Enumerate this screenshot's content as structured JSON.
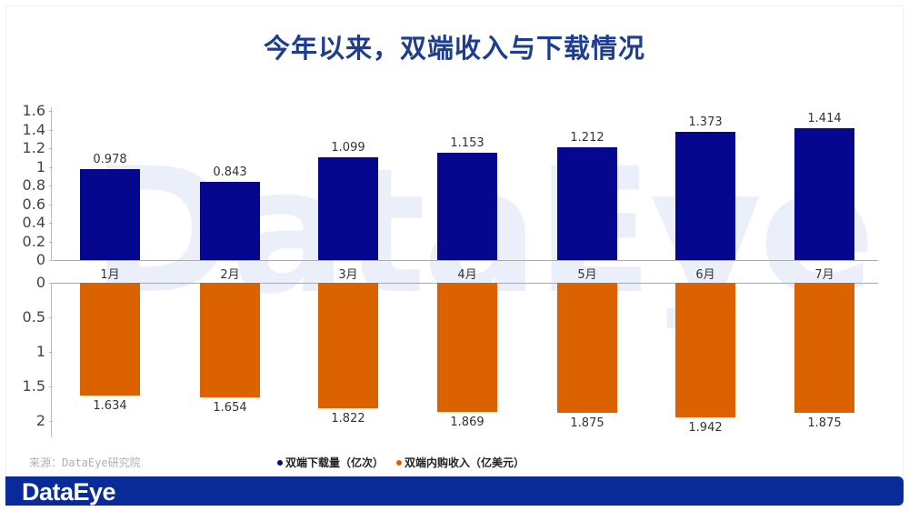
{
  "title": "今年以来，双端收入与下载情况",
  "source": "来源：DataEye研究院",
  "logo": "DataEye",
  "watermark": "DataEye",
  "legend": [
    {
      "label": "双端下载量（亿次）",
      "color": "#06078f"
    },
    {
      "label": "双端内购收入（亿美元）",
      "color": "#dc6200"
    }
  ],
  "chart_data": {
    "type": "bar",
    "title": "今年以来，双端收入与下载情况",
    "categories": [
      "1月",
      "2月",
      "3月",
      "4月",
      "5月",
      "6月",
      "7月"
    ],
    "series": [
      {
        "name": "双端下载量（亿次）",
        "values": [
          0.978,
          0.843,
          1.099,
          1.153,
          1.212,
          1.373,
          1.414
        ],
        "color": "#06078f",
        "panel": "top",
        "ylim": [
          0,
          1.6
        ],
        "yticks": [
          "0",
          "0.2",
          "0.4",
          "0.6",
          "0.8",
          "1",
          "1.2",
          "1.4",
          "1.6"
        ]
      },
      {
        "name": "双端内购收入（亿美元）",
        "values": [
          1.634,
          1.654,
          1.822,
          1.869,
          1.875,
          1.942,
          1.875
        ],
        "color": "#dc6200",
        "panel": "bottom-inverted",
        "ylim": [
          0,
          2
        ],
        "yticks": [
          "0",
          "0.5",
          "1",
          "1.5",
          "2"
        ]
      }
    ],
    "xlabel": "",
    "ylabel": "",
    "legend_position": "bottom",
    "grid": false
  },
  "top_ticks": [
    "0",
    "0.2",
    "0.4",
    "0.6",
    "0.8",
    "1",
    "1.2",
    "1.4",
    "1.6"
  ],
  "bottom_ticks": [
    "0",
    "0.5",
    "1",
    "1.5",
    "2"
  ],
  "downloads": [
    {
      "label": "0.978"
    },
    {
      "label": "0.843"
    },
    {
      "label": "1.099"
    },
    {
      "label": "1.153"
    },
    {
      "label": "1.212"
    },
    {
      "label": "1.373"
    },
    {
      "label": "1.414"
    }
  ],
  "revenue": [
    {
      "label": "1.634"
    },
    {
      "label": "1.654"
    },
    {
      "label": "1.822"
    },
    {
      "label": "1.869"
    },
    {
      "label": "1.875"
    },
    {
      "label": "1.942"
    },
    {
      "label": "1.875"
    }
  ],
  "months": [
    "1月",
    "2月",
    "3月",
    "4月",
    "5月",
    "6月",
    "7月"
  ]
}
